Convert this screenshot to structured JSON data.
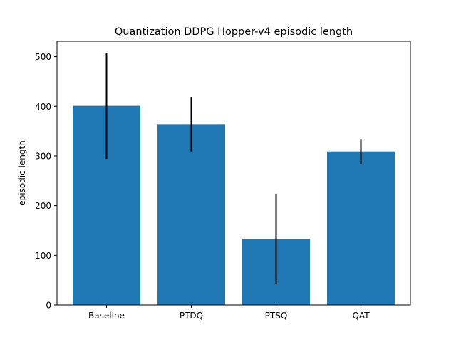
{
  "chart_data": {
    "type": "bar",
    "title": "Quantization DDPG Hopper-v4 episodic length",
    "xlabel": "",
    "ylabel": "episodic length",
    "categories": [
      "Baseline",
      "PTDQ",
      "PTSQ",
      "QAT"
    ],
    "values": [
      401,
      364,
      133,
      309
    ],
    "error": [
      107,
      55,
      91,
      25
    ],
    "ylim": [
      0,
      531
    ],
    "yticks": [
      0,
      100,
      200,
      300,
      400,
      500
    ],
    "grid": false,
    "bar_color": "#1f77b4",
    "error_color": "#000000"
  }
}
